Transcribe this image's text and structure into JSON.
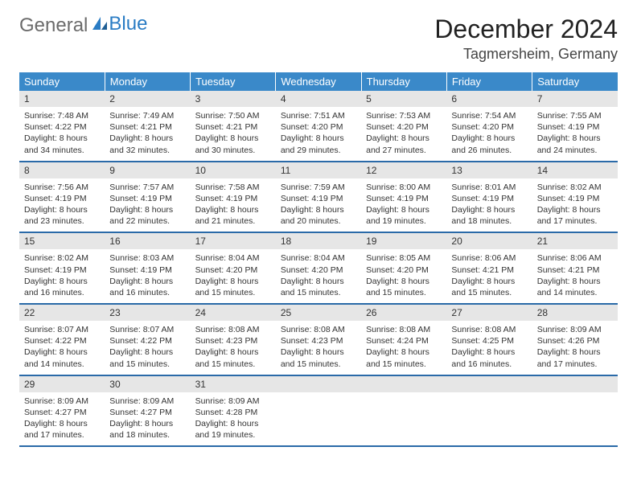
{
  "logo": {
    "part1": "General",
    "part2": "Blue"
  },
  "title": {
    "month": "December 2024",
    "location": "Tagmersheim, Germany"
  },
  "days": [
    "Sunday",
    "Monday",
    "Tuesday",
    "Wednesday",
    "Thursday",
    "Friday",
    "Saturday"
  ],
  "colors": {
    "header_bg": "#3a89c9",
    "row_divider": "#2a6aa8",
    "daynum_bg": "#e6e6e6",
    "logo_gray": "#6b6b6b",
    "logo_blue": "#2a7cc4"
  },
  "cells": [
    {
      "n": "1",
      "sr": "7:48 AM",
      "ss": "4:22 PM",
      "dl": "8 hours and 34 minutes."
    },
    {
      "n": "2",
      "sr": "7:49 AM",
      "ss": "4:21 PM",
      "dl": "8 hours and 32 minutes."
    },
    {
      "n": "3",
      "sr": "7:50 AM",
      "ss": "4:21 PM",
      "dl": "8 hours and 30 minutes."
    },
    {
      "n": "4",
      "sr": "7:51 AM",
      "ss": "4:20 PM",
      "dl": "8 hours and 29 minutes."
    },
    {
      "n": "5",
      "sr": "7:53 AM",
      "ss": "4:20 PM",
      "dl": "8 hours and 27 minutes."
    },
    {
      "n": "6",
      "sr": "7:54 AM",
      "ss": "4:20 PM",
      "dl": "8 hours and 26 minutes."
    },
    {
      "n": "7",
      "sr": "7:55 AM",
      "ss": "4:19 PM",
      "dl": "8 hours and 24 minutes."
    },
    {
      "n": "8",
      "sr": "7:56 AM",
      "ss": "4:19 PM",
      "dl": "8 hours and 23 minutes."
    },
    {
      "n": "9",
      "sr": "7:57 AM",
      "ss": "4:19 PM",
      "dl": "8 hours and 22 minutes."
    },
    {
      "n": "10",
      "sr": "7:58 AM",
      "ss": "4:19 PM",
      "dl": "8 hours and 21 minutes."
    },
    {
      "n": "11",
      "sr": "7:59 AM",
      "ss": "4:19 PM",
      "dl": "8 hours and 20 minutes."
    },
    {
      "n": "12",
      "sr": "8:00 AM",
      "ss": "4:19 PM",
      "dl": "8 hours and 19 minutes."
    },
    {
      "n": "13",
      "sr": "8:01 AM",
      "ss": "4:19 PM",
      "dl": "8 hours and 18 minutes."
    },
    {
      "n": "14",
      "sr": "8:02 AM",
      "ss": "4:19 PM",
      "dl": "8 hours and 17 minutes."
    },
    {
      "n": "15",
      "sr": "8:02 AM",
      "ss": "4:19 PM",
      "dl": "8 hours and 16 minutes."
    },
    {
      "n": "16",
      "sr": "8:03 AM",
      "ss": "4:19 PM",
      "dl": "8 hours and 16 minutes."
    },
    {
      "n": "17",
      "sr": "8:04 AM",
      "ss": "4:20 PM",
      "dl": "8 hours and 15 minutes."
    },
    {
      "n": "18",
      "sr": "8:04 AM",
      "ss": "4:20 PM",
      "dl": "8 hours and 15 minutes."
    },
    {
      "n": "19",
      "sr": "8:05 AM",
      "ss": "4:20 PM",
      "dl": "8 hours and 15 minutes."
    },
    {
      "n": "20",
      "sr": "8:06 AM",
      "ss": "4:21 PM",
      "dl": "8 hours and 15 minutes."
    },
    {
      "n": "21",
      "sr": "8:06 AM",
      "ss": "4:21 PM",
      "dl": "8 hours and 14 minutes."
    },
    {
      "n": "22",
      "sr": "8:07 AM",
      "ss": "4:22 PM",
      "dl": "8 hours and 14 minutes."
    },
    {
      "n": "23",
      "sr": "8:07 AM",
      "ss": "4:22 PM",
      "dl": "8 hours and 15 minutes."
    },
    {
      "n": "24",
      "sr": "8:08 AM",
      "ss": "4:23 PM",
      "dl": "8 hours and 15 minutes."
    },
    {
      "n": "25",
      "sr": "8:08 AM",
      "ss": "4:23 PM",
      "dl": "8 hours and 15 minutes."
    },
    {
      "n": "26",
      "sr": "8:08 AM",
      "ss": "4:24 PM",
      "dl": "8 hours and 15 minutes."
    },
    {
      "n": "27",
      "sr": "8:08 AM",
      "ss": "4:25 PM",
      "dl": "8 hours and 16 minutes."
    },
    {
      "n": "28",
      "sr": "8:09 AM",
      "ss": "4:26 PM",
      "dl": "8 hours and 17 minutes."
    },
    {
      "n": "29",
      "sr": "8:09 AM",
      "ss": "4:27 PM",
      "dl": "8 hours and 17 minutes."
    },
    {
      "n": "30",
      "sr": "8:09 AM",
      "ss": "4:27 PM",
      "dl": "8 hours and 18 minutes."
    },
    {
      "n": "31",
      "sr": "8:09 AM",
      "ss": "4:28 PM",
      "dl": "8 hours and 19 minutes."
    }
  ],
  "labels": {
    "sunrise": "Sunrise:",
    "sunset": "Sunset:",
    "daylight": "Daylight:"
  }
}
